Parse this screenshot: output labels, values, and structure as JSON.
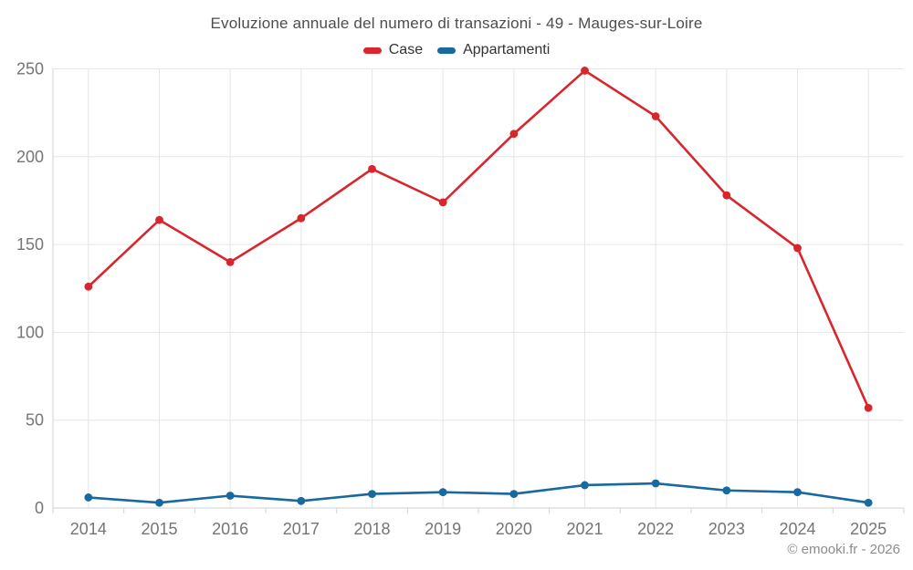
{
  "chart_data": {
    "type": "line",
    "title": "Evoluzione annuale del numero di transazioni - 49 - Mauges-sur-Loire",
    "categories": [
      "2014",
      "2015",
      "2016",
      "2017",
      "2018",
      "2019",
      "2020",
      "2021",
      "2022",
      "2023",
      "2024",
      "2025"
    ],
    "series": [
      {
        "name": "Case",
        "color": "#d8262c",
        "values": [
          126,
          164,
          140,
          165,
          193,
          174,
          213,
          249,
          223,
          178,
          148,
          57
        ]
      },
      {
        "name": "Appartamenti",
        "color": "#17699e",
        "values": [
          6,
          3,
          7,
          4,
          8,
          9,
          8,
          13,
          14,
          10,
          9,
          3
        ]
      }
    ],
    "xlabel": "",
    "ylabel": "",
    "ylim": [
      0,
      250
    ],
    "yticks": [
      0,
      50,
      100,
      150,
      200,
      250
    ],
    "grid": true,
    "legend_position": "top"
  },
  "footer": {
    "copyright": "© emooki.fr - 2026"
  },
  "colors": {
    "grid": "#e6e6e6",
    "axis": "#d2d2d2",
    "tick_label": "#757575",
    "title": "#4d4d4d",
    "legend_text": "#333333",
    "background": "#ffffff"
  }
}
